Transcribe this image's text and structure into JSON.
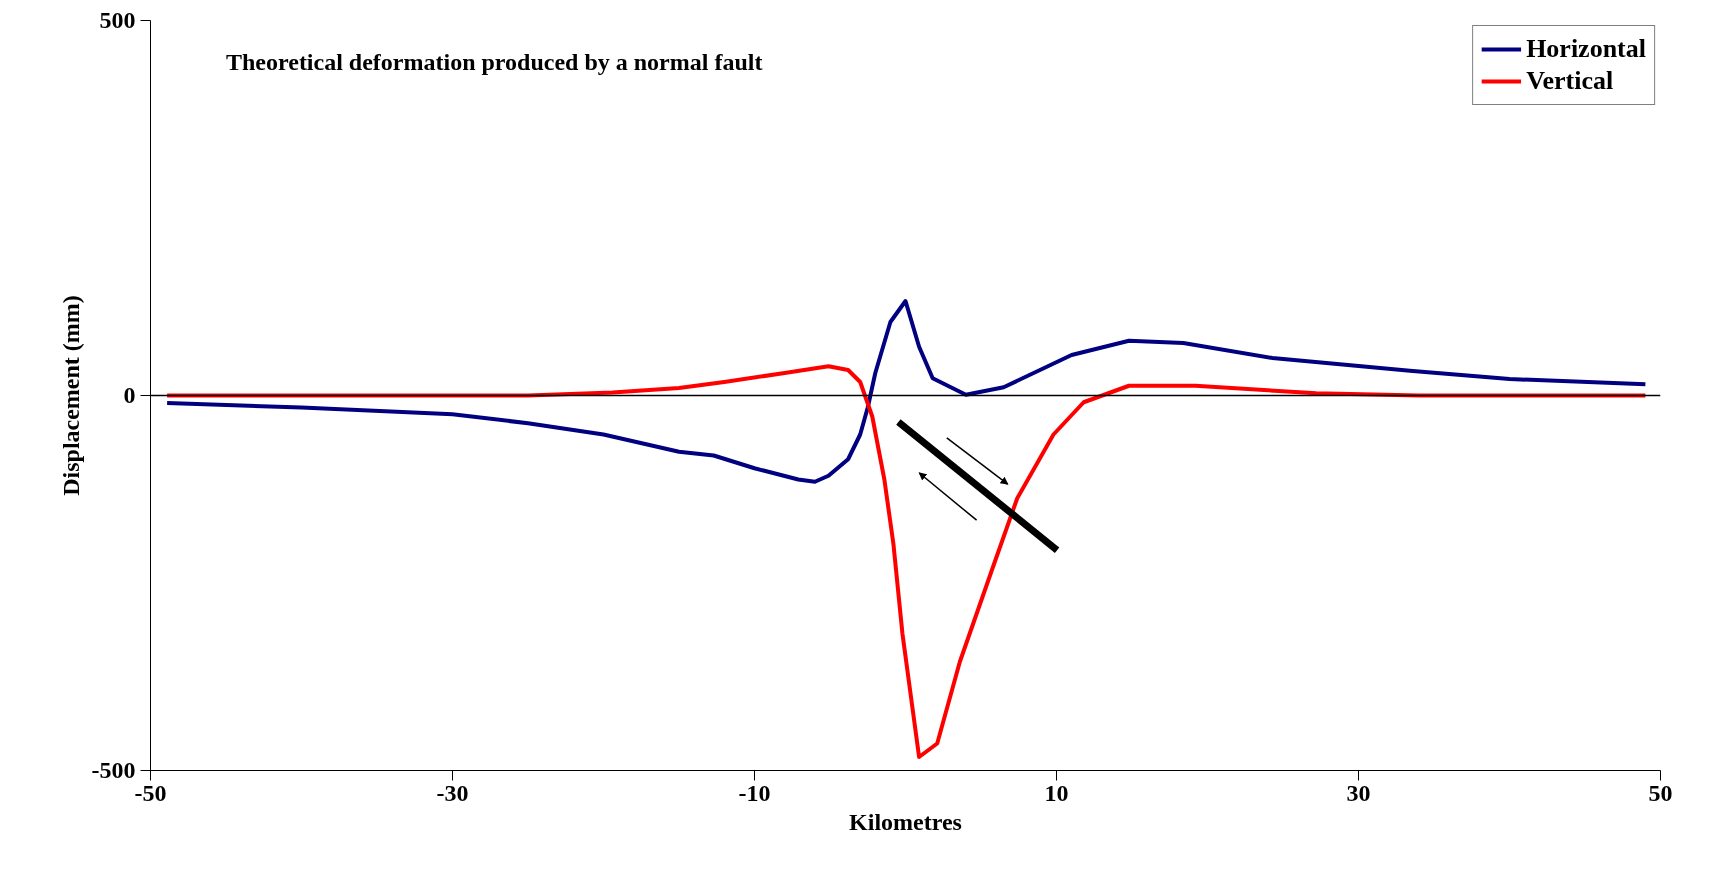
{
  "chart_data": {
    "type": "line",
    "title": "Theoretical deformation produced by a normal fault",
    "xlabel": "Kilometres",
    "ylabel": "Displacement (mm)",
    "xlim": [
      -50,
      50
    ],
    "ylim": [
      -500,
      500
    ],
    "xticks": [
      -50,
      -30,
      -10,
      10,
      30,
      50
    ],
    "yticks": [
      -500,
      0,
      500
    ],
    "grid": false,
    "legend": "top right",
    "line_style": "solid",
    "marker": "none",
    "ref_lines": [
      {
        "axis": "y",
        "value": 0,
        "color": "#000000"
      }
    ],
    "series": [
      {
        "name": "Horizontal",
        "color": "#000080",
        "x": [
          -48.9,
          -40,
          -30,
          -25,
          -20,
          -15,
          -12.7,
          -10,
          -7.1,
          -6,
          -5.1,
          -3.8,
          -3,
          -2.5,
          -2,
          -1,
          0,
          0.9,
          1.8,
          4,
          6.5,
          11,
          14.8,
          18.4,
          24.3,
          33.4,
          40,
          49
        ],
        "values": [
          -10,
          -16,
          -25,
          -37,
          -52,
          -75,
          -80,
          -97,
          -112,
          -115,
          -107,
          -85,
          -52,
          -16,
          30,
          98,
          126,
          65,
          23,
          1,
          11,
          54,
          73,
          70,
          50,
          33,
          22,
          15
        ]
      },
      {
        "name": "Vertical",
        "color": "#ff0000",
        "x": [
          -48.9,
          -30,
          -25,
          -19.4,
          -15,
          -12,
          -8,
          -5.1,
          -3.8,
          -3,
          -2.2,
          -1.4,
          -0.8,
          -0.2,
          0.9,
          2.1,
          3.6,
          5.7,
          7.4,
          9.8,
          11.8,
          14.8,
          19.2,
          27.2,
          34,
          49
        ],
        "values": [
          0,
          0,
          0,
          4,
          10,
          18,
          30,
          39,
          34,
          18,
          -28,
          -112,
          -198,
          -318,
          -482,
          -464,
          -355,
          -234,
          -137,
          -52,
          -9,
          13,
          13,
          3,
          0,
          0
        ]
      }
    ]
  }
}
